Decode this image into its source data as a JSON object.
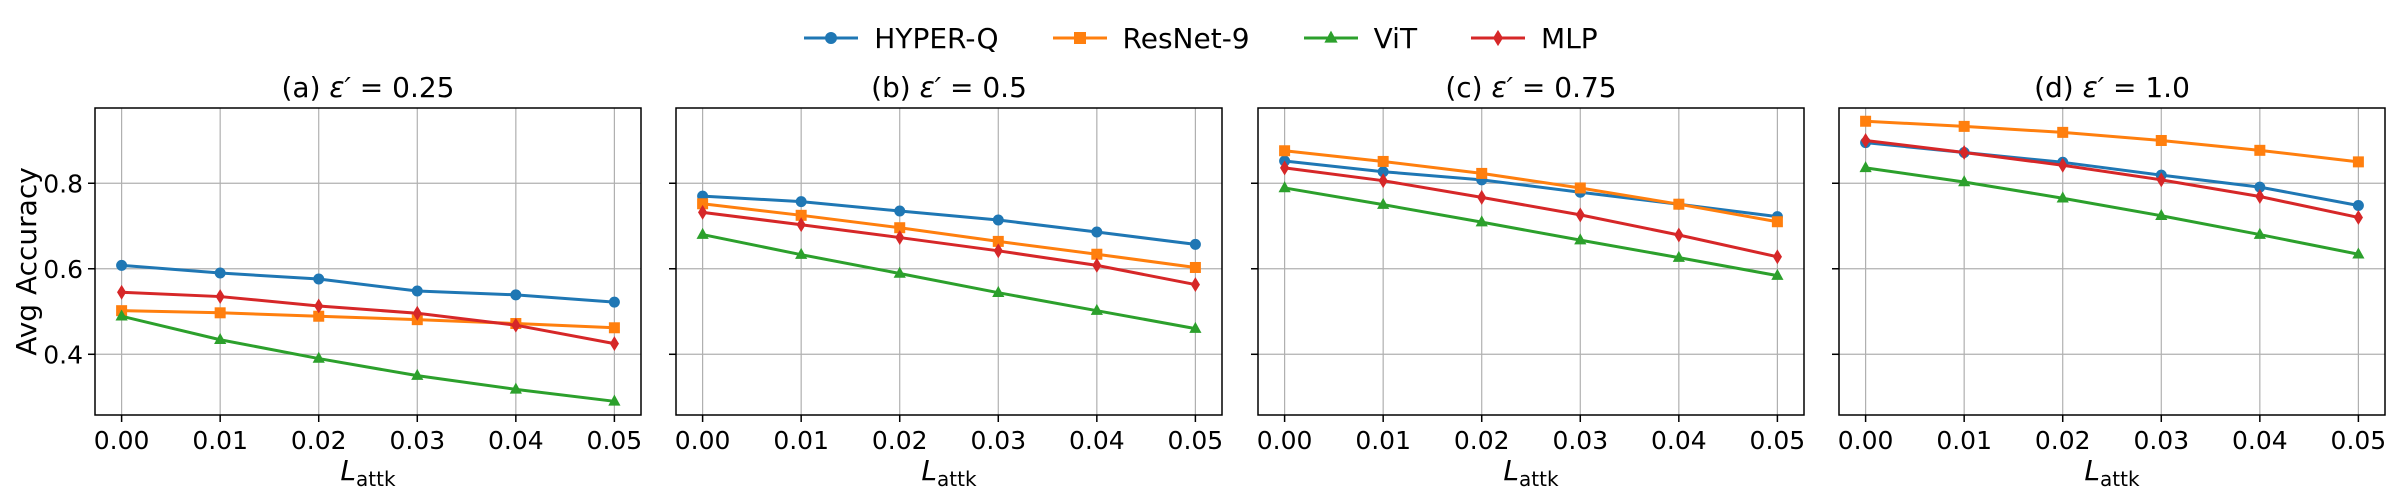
{
  "chart_data": [
    {
      "type": "line",
      "title_prefix": "(a) ",
      "title_symbol": "ε′",
      "title_suffix": " = 0.25",
      "xlabel_main": "L",
      "xlabel_sub": "attk",
      "ylabel": "Avg Accuracy",
      "x": [
        0.0,
        0.01,
        0.02,
        0.03,
        0.04,
        0.05
      ],
      "x_tick_labels": [
        "0.00",
        "0.01",
        "0.02",
        "0.03",
        "0.04",
        "0.05"
      ],
      "y_ticks": [
        0.4,
        0.6,
        0.8
      ],
      "y_tick_labels": [
        "0.4",
        "0.6",
        "0.8"
      ],
      "xlim": [
        -0.0027,
        0.0527
      ],
      "ylim": [
        0.258,
        0.976
      ],
      "grid": true,
      "series": [
        {
          "name": "HYPER-Q",
          "values": [
            0.608,
            0.59,
            0.576,
            0.548,
            0.539,
            0.522
          ]
        },
        {
          "name": "ResNet-9",
          "values": [
            0.502,
            0.497,
            0.489,
            0.481,
            0.472,
            0.462
          ]
        },
        {
          "name": "ViT",
          "values": [
            0.489,
            0.434,
            0.39,
            0.35,
            0.318,
            0.29
          ]
        },
        {
          "name": "MLP",
          "values": [
            0.545,
            0.535,
            0.513,
            0.496,
            0.468,
            0.425
          ]
        }
      ]
    },
    {
      "type": "line",
      "title_prefix": "(b) ",
      "title_symbol": "ε′",
      "title_suffix": " = 0.5",
      "xlabel_main": "L",
      "xlabel_sub": "attk",
      "x": [
        0.0,
        0.01,
        0.02,
        0.03,
        0.04,
        0.05
      ],
      "x_tick_labels": [
        "0.00",
        "0.01",
        "0.02",
        "0.03",
        "0.04",
        "0.05"
      ],
      "y_ticks": [
        0.4,
        0.6,
        0.8
      ],
      "xlim": [
        -0.0027,
        0.0527
      ],
      "ylim": [
        0.258,
        0.976
      ],
      "grid": true,
      "series": [
        {
          "name": "HYPER-Q",
          "values": [
            0.77,
            0.757,
            0.735,
            0.714,
            0.686,
            0.657
          ]
        },
        {
          "name": "ResNet-9",
          "values": [
            0.752,
            0.725,
            0.696,
            0.664,
            0.634,
            0.603
          ]
        },
        {
          "name": "ViT",
          "values": [
            0.68,
            0.633,
            0.589,
            0.544,
            0.502,
            0.46
          ]
        },
        {
          "name": "MLP",
          "values": [
            0.732,
            0.703,
            0.673,
            0.642,
            0.608,
            0.563
          ]
        }
      ]
    },
    {
      "type": "line",
      "title_prefix": "(c) ",
      "title_symbol": "ε′",
      "title_suffix": " = 0.75",
      "xlabel_main": "L",
      "xlabel_sub": "attk",
      "x": [
        0.0,
        0.01,
        0.02,
        0.03,
        0.04,
        0.05
      ],
      "x_tick_labels": [
        "0.00",
        "0.01",
        "0.02",
        "0.03",
        "0.04",
        "0.05"
      ],
      "y_ticks": [
        0.4,
        0.6,
        0.8
      ],
      "xlim": [
        -0.0027,
        0.0527
      ],
      "ylim": [
        0.258,
        0.976
      ],
      "grid": true,
      "series": [
        {
          "name": "HYPER-Q",
          "values": [
            0.852,
            0.827,
            0.808,
            0.779,
            0.751,
            0.722
          ]
        },
        {
          "name": "ResNet-9",
          "values": [
            0.876,
            0.851,
            0.823,
            0.789,
            0.751,
            0.71
          ]
        },
        {
          "name": "ViT",
          "values": [
            0.789,
            0.75,
            0.709,
            0.667,
            0.626,
            0.584
          ]
        },
        {
          "name": "MLP",
          "values": [
            0.836,
            0.806,
            0.767,
            0.726,
            0.679,
            0.628
          ]
        }
      ]
    },
    {
      "type": "line",
      "title_prefix": "(d) ",
      "title_symbol": "ε′",
      "title_suffix": " = 1.0",
      "xlabel_main": "L",
      "xlabel_sub": "attk",
      "x": [
        0.0,
        0.01,
        0.02,
        0.03,
        0.04,
        0.05
      ],
      "x_tick_labels": [
        "0.00",
        "0.01",
        "0.02",
        "0.03",
        "0.04",
        "0.05"
      ],
      "y_ticks": [
        0.4,
        0.6,
        0.8
      ],
      "xlim": [
        -0.0027,
        0.0527
      ],
      "ylim": [
        0.258,
        0.976
      ],
      "grid": true,
      "series": [
        {
          "name": "HYPER-Q",
          "values": [
            0.895,
            0.872,
            0.849,
            0.819,
            0.791,
            0.748
          ]
        },
        {
          "name": "ResNet-9",
          "values": [
            0.945,
            0.933,
            0.919,
            0.9,
            0.877,
            0.85
          ]
        },
        {
          "name": "ViT",
          "values": [
            0.836,
            0.803,
            0.765,
            0.724,
            0.68,
            0.634
          ]
        },
        {
          "name": "MLP",
          "values": [
            0.9,
            0.872,
            0.842,
            0.808,
            0.769,
            0.72
          ]
        }
      ]
    }
  ],
  "legend": {
    "placement": "top-center",
    "entries": [
      {
        "name": "HYPER-Q",
        "color": "#1f77b4",
        "marker": "circle"
      },
      {
        "name": "ResNet-9",
        "color": "#ff7f0e",
        "marker": "square"
      },
      {
        "name": "ViT",
        "color": "#2ca02c",
        "marker": "triangle"
      },
      {
        "name": "MLP",
        "color": "#d62728",
        "marker": "diamond"
      }
    ]
  }
}
